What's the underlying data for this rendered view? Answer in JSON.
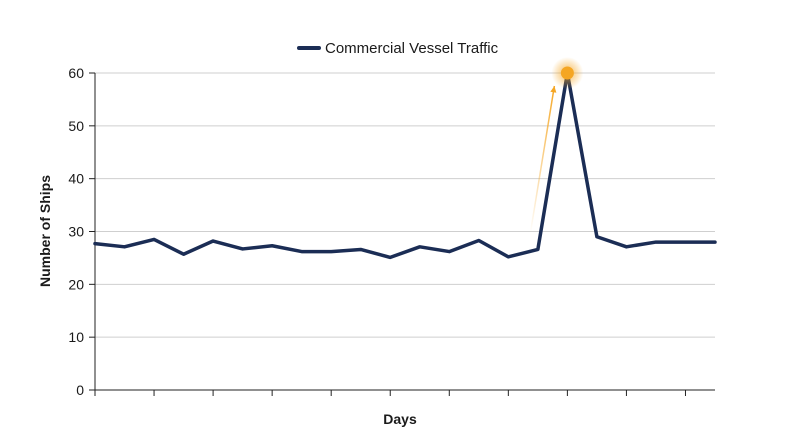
{
  "chart_data": {
    "type": "line",
    "title": "",
    "xlabel": "Days",
    "ylabel": "Number of Ships",
    "ylim": [
      0,
      60
    ],
    "yticks": [
      0,
      10,
      20,
      30,
      40,
      50,
      60
    ],
    "grid": true,
    "legend_position": "top-center",
    "x": [
      1,
      2,
      3,
      4,
      5,
      6,
      7,
      8,
      9,
      10,
      11,
      12,
      13,
      14,
      15,
      16,
      17,
      18,
      19,
      20,
      21,
      22
    ],
    "series": [
      {
        "name": "Commercial Vessel Traffic",
        "color": "#1b2d55",
        "values": [
          27.7,
          27.1,
          28.5,
          25.7,
          28.2,
          26.7,
          27.3,
          26.2,
          26.2,
          26.6,
          25.1,
          27.1,
          26.2,
          28.3,
          25.2,
          26.6,
          60,
          29.0,
          27.1,
          28.0,
          28.0,
          28.0
        ]
      }
    ],
    "highlight": {
      "index": 16,
      "value": 60,
      "color": "#f5a623"
    }
  }
}
